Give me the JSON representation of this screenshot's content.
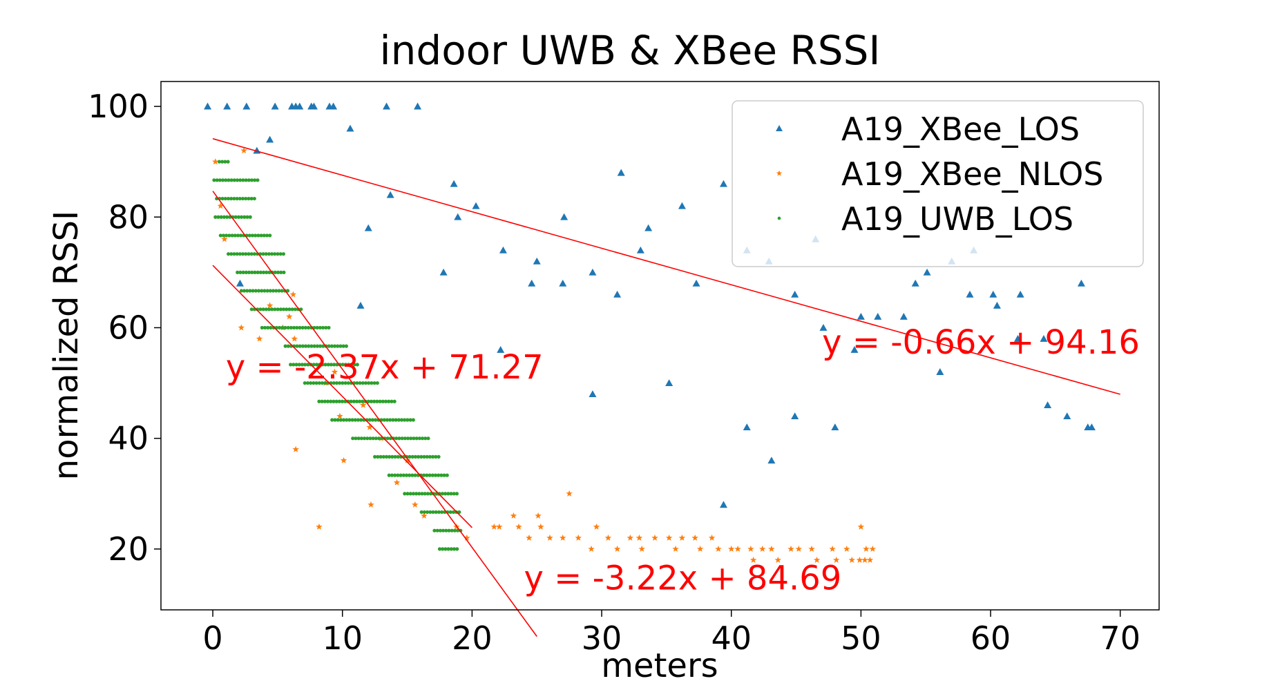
{
  "chart_data": {
    "type": "scatter",
    "title": "indoor UWB & XBee RSSI",
    "xlabel": "meters",
    "ylabel": "normalized RSSI",
    "xlim": [
      -4,
      73
    ],
    "ylim": [
      9,
      104.5
    ],
    "xticks": [
      0,
      10,
      20,
      30,
      40,
      50,
      60,
      70
    ],
    "yticks": [
      20,
      40,
      60,
      80,
      100
    ],
    "grid": false,
    "legend_position": "top-right",
    "series": [
      {
        "name": "A19_XBee_LOS",
        "marker": "triangle",
        "color": "#1f77b4",
        "points": [
          [
            -0.4,
            100
          ],
          [
            1.1,
            100
          ],
          [
            2.6,
            100
          ],
          [
            4.8,
            100
          ],
          [
            6.1,
            100
          ],
          [
            6.4,
            100
          ],
          [
            6.7,
            100
          ],
          [
            7.6,
            100
          ],
          [
            7.8,
            100
          ],
          [
            9.0,
            100
          ],
          [
            9.3,
            100
          ],
          [
            13.4,
            100
          ],
          [
            15.8,
            100
          ],
          [
            10.6,
            96
          ],
          [
            4.4,
            94
          ],
          [
            3.4,
            92
          ],
          [
            13.7,
            84
          ],
          [
            18.6,
            86
          ],
          [
            20.3,
            82
          ],
          [
            18.9,
            80
          ],
          [
            27.1,
            80
          ],
          [
            31.5,
            88
          ],
          [
            12.0,
            78
          ],
          [
            33.6,
            78
          ],
          [
            36.2,
            82
          ],
          [
            39.4,
            86
          ],
          [
            22.4,
            74
          ],
          [
            24.6,
            68
          ],
          [
            25.0,
            72
          ],
          [
            27.0,
            68
          ],
          [
            29.3,
            70
          ],
          [
            31.2,
            66
          ],
          [
            33.0,
            74
          ],
          [
            37.3,
            68
          ],
          [
            17.8,
            70
          ],
          [
            11.4,
            64
          ],
          [
            2.1,
            68
          ],
          [
            41.2,
            74
          ],
          [
            42.9,
            72
          ],
          [
            44.9,
            66
          ],
          [
            46.5,
            76
          ],
          [
            47.1,
            60
          ],
          [
            49.5,
            56
          ],
          [
            50.0,
            62
          ],
          [
            51.3,
            62
          ],
          [
            53.3,
            62
          ],
          [
            54.2,
            68
          ],
          [
            55.1,
            70
          ],
          [
            56.1,
            52
          ],
          [
            57.0,
            72
          ],
          [
            58.4,
            66
          ],
          [
            58.7,
            74
          ],
          [
            60.2,
            66
          ],
          [
            60.5,
            64
          ],
          [
            62.1,
            58
          ],
          [
            62.3,
            66
          ],
          [
            64.1,
            58
          ],
          [
            64.4,
            46
          ],
          [
            65.9,
            44
          ],
          [
            67.0,
            68
          ],
          [
            67.5,
            42
          ],
          [
            67.8,
            42
          ],
          [
            22.2,
            56
          ],
          [
            29.3,
            48
          ],
          [
            35.2,
            50
          ],
          [
            39.4,
            28
          ],
          [
            41.2,
            42
          ],
          [
            43.1,
            36
          ],
          [
            44.9,
            44
          ],
          [
            48.0,
            42
          ]
        ]
      },
      {
        "name": "A19_XBee_NLOS",
        "marker": "star",
        "color": "#ff7f0e",
        "points": [
          [
            0.2,
            90
          ],
          [
            2.4,
            92
          ],
          [
            0.6,
            82
          ],
          [
            0.9,
            76
          ],
          [
            2.2,
            60
          ],
          [
            4.4,
            64
          ],
          [
            3.6,
            58
          ],
          [
            5.4,
            60
          ],
          [
            5.9,
            62
          ],
          [
            6.2,
            66
          ],
          [
            6.3,
            58
          ],
          [
            8.7,
            50
          ],
          [
            9.4,
            52
          ],
          [
            9.8,
            44
          ],
          [
            10.1,
            36
          ],
          [
            8.2,
            24
          ],
          [
            6.4,
            38
          ],
          [
            11.6,
            46
          ],
          [
            12.1,
            42
          ],
          [
            12.2,
            28
          ],
          [
            13.0,
            40
          ],
          [
            14.2,
            32
          ],
          [
            15.0,
            36
          ],
          [
            15.6,
            28
          ],
          [
            16.3,
            26
          ],
          [
            17.3,
            30
          ],
          [
            18.8,
            24
          ],
          [
            19.6,
            22
          ],
          [
            21.7,
            24
          ],
          [
            22.1,
            24
          ],
          [
            23.2,
            26
          ],
          [
            23.6,
            24
          ],
          [
            24.4,
            22
          ],
          [
            25.1,
            26
          ],
          [
            25.3,
            24
          ],
          [
            26.0,
            22
          ],
          [
            27.0,
            22
          ],
          [
            27.5,
            30
          ],
          [
            28.2,
            22
          ],
          [
            29.2,
            20
          ],
          [
            29.6,
            24
          ],
          [
            30.5,
            22
          ],
          [
            31.2,
            20
          ],
          [
            32.2,
            22
          ],
          [
            32.9,
            22
          ],
          [
            33.1,
            20
          ],
          [
            34.1,
            22
          ],
          [
            35.2,
            22
          ],
          [
            35.7,
            20
          ],
          [
            36.2,
            22
          ],
          [
            37.2,
            22
          ],
          [
            37.6,
            20
          ],
          [
            38.5,
            22
          ],
          [
            39.0,
            20
          ],
          [
            40.0,
            20
          ],
          [
            40.5,
            20
          ],
          [
            41.5,
            20
          ],
          [
            41.7,
            18
          ],
          [
            42.4,
            20
          ],
          [
            43.1,
            20
          ],
          [
            43.6,
            18
          ],
          [
            44.6,
            20
          ],
          [
            45.2,
            20
          ],
          [
            46.2,
            20
          ],
          [
            46.6,
            18
          ],
          [
            47.8,
            20
          ],
          [
            48.1,
            18
          ],
          [
            48.9,
            20
          ],
          [
            49.3,
            18
          ],
          [
            49.9,
            18
          ],
          [
            50.0,
            24
          ],
          [
            50.3,
            18
          ],
          [
            50.4,
            20
          ],
          [
            50.7,
            18
          ],
          [
            50.9,
            20
          ]
        ]
      },
      {
        "name": "A19_UWB_LOS",
        "marker": "dot",
        "color": "#2ca02c",
        "points": [
          [
            0.5,
            90
          ],
          [
            1.3,
            90
          ],
          [
            0.1,
            86.67
          ],
          [
            3.5,
            86.67
          ],
          [
            0.3,
            83.33
          ],
          [
            3.4,
            83.33
          ],
          [
            0.2,
            80
          ],
          [
            3.1,
            80
          ],
          [
            0.6,
            76.67
          ],
          [
            4.6,
            76.67
          ],
          [
            1.2,
            73.33
          ],
          [
            5.6,
            73.33
          ],
          [
            1.9,
            70
          ],
          [
            5.6,
            70
          ],
          [
            2.2,
            66.67
          ],
          [
            5.9,
            66.67
          ],
          [
            3.0,
            63.33
          ],
          [
            6.9,
            63.33
          ],
          [
            3.8,
            60
          ],
          [
            9.0,
            60
          ],
          [
            5.6,
            56.67
          ],
          [
            10.3,
            56.67
          ],
          [
            6.0,
            53.33
          ],
          [
            11.3,
            53.33
          ],
          [
            7.1,
            50
          ],
          [
            12.7,
            50
          ],
          [
            8.2,
            46.67
          ],
          [
            14.2,
            46.67
          ],
          [
            9.2,
            43.33
          ],
          [
            15.6,
            43.33
          ],
          [
            10.8,
            40
          ],
          [
            16.7,
            40
          ],
          [
            12.5,
            36.67
          ],
          [
            17.5,
            36.67
          ],
          [
            13.6,
            33.33
          ],
          [
            18.2,
            33.33
          ],
          [
            14.8,
            30
          ],
          [
            18.9,
            30
          ],
          [
            16.1,
            26.67
          ],
          [
            19.1,
            26.67
          ],
          [
            17.1,
            23.33
          ],
          [
            19.3,
            23.33
          ],
          [
            17.5,
            20
          ],
          [
            18.9,
            20
          ]
        ]
      }
    ],
    "fit_lines": [
      {
        "color": "#ff0000",
        "x": [
          0,
          70
        ],
        "y": [
          94.16,
          47.96
        ],
        "label": "y = -0.66x + 94.16",
        "label_anchor": [
          47.0,
          55.3
        ]
      },
      {
        "color": "#ff0000",
        "x": [
          0,
          20
        ],
        "y": [
          71.27,
          23.87
        ],
        "label": "y = -2.37x + 71.27",
        "label_anchor": [
          1.0,
          50.8
        ]
      },
      {
        "color": "#ff0000",
        "x": [
          0,
          25
        ],
        "y": [
          84.69,
          4.19
        ],
        "label": "y = -3.22x + 84.69",
        "label_anchor": [
          24.0,
          12.7
        ]
      }
    ]
  }
}
